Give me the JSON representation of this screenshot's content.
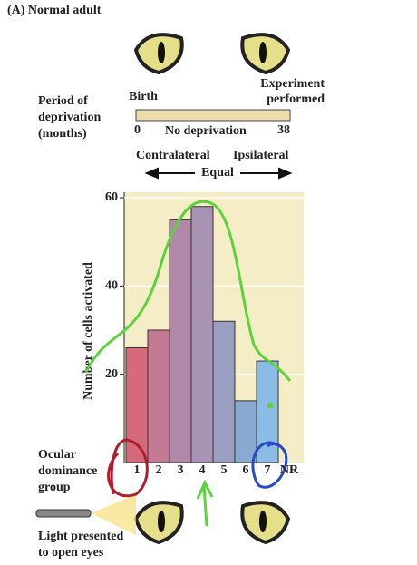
{
  "chart_data": {
    "type": "bar",
    "title": "(A) Normal adult",
    "period_label": [
      "Period of",
      "deprivation",
      "(months)"
    ],
    "birth_label": "Birth",
    "experiment_label": [
      "Experiment",
      "performed"
    ],
    "timeline_start": "0",
    "timeline_end": "38",
    "timeline_label": "No deprivation",
    "contralateral_label": "Contralateral",
    "ipsilateral_label": "Ipsilateral",
    "equal_label": "Equal",
    "y_label": "Number of cells activated",
    "x_label": [
      "Ocular",
      "dominance",
      "group"
    ],
    "light_label": [
      "Light presented",
      "to open eyes"
    ],
    "categories": [
      "1",
      "2",
      "3",
      "4",
      "5",
      "6",
      "7",
      "NR"
    ],
    "values": [
      26,
      30,
      55,
      58,
      32,
      14,
      23,
      0
    ],
    "colors": [
      "#d46a7c",
      "#c47a92",
      "#b288a8",
      "#a893b4",
      "#9a9fc2",
      "#8aaad2",
      "#8cbce6",
      "#8cbce6"
    ],
    "ylim": [
      0,
      60
    ],
    "yticks": [
      20,
      40,
      60
    ]
  }
}
